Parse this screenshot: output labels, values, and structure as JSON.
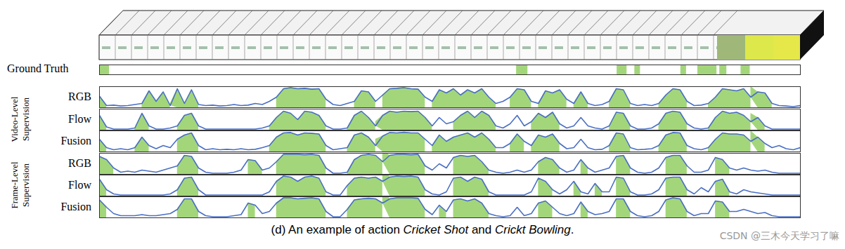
{
  "chart_data": {
    "type": "line",
    "tick_labels": false,
    "x": [
      0,
      1,
      2,
      3,
      4,
      5,
      6,
      7,
      8,
      9,
      10,
      11,
      12,
      13,
      14,
      15,
      16,
      17,
      18,
      19,
      20,
      21,
      22,
      23,
      24,
      25,
      26,
      27,
      28,
      29,
      30,
      31,
      32,
      33,
      34,
      35,
      36,
      37,
      38,
      39,
      40,
      41,
      42,
      43,
      44,
      45,
      46,
      47,
      48,
      49,
      50,
      51,
      52,
      53,
      54,
      55,
      56,
      57,
      58,
      59,
      60,
      61,
      62,
      63,
      64,
      65,
      66,
      67,
      68,
      69,
      70,
      71,
      72,
      73,
      74,
      75,
      76,
      77,
      78,
      79,
      80,
      81,
      82,
      83,
      84,
      85,
      86,
      87,
      88,
      89,
      90,
      91,
      92,
      93,
      94,
      95,
      96,
      97,
      98,
      99
    ],
    "xlim": [
      0,
      99
    ],
    "ylim": [
      0,
      1
    ],
    "ground_truth": {
      "label": "Ground Truth",
      "intervals": [
        [
          0,
          1.4
        ],
        [
          58.9,
          60.5
        ],
        [
          73.1,
          74.5
        ],
        [
          75.6,
          76.4
        ],
        [
          82.1,
          82.9
        ],
        [
          84.5,
          87.2
        ],
        [
          87.6,
          88.6
        ],
        [
          90.6,
          91.9
        ]
      ]
    },
    "series": [
      {
        "name": "RGB",
        "group": "Video-Level Supervision",
        "color": "#4a6fc4",
        "values": [
          0.55,
          0.1,
          0.12,
          0.08,
          0.1,
          0.15,
          0.2,
          0.8,
          0.3,
          0.75,
          0.1,
          0.9,
          0.2,
          0.85,
          0.15,
          0.1,
          0.12,
          0.08,
          0.1,
          0.15,
          0.1,
          0.12,
          0.2,
          0.15,
          0.3,
          0.5,
          0.9,
          0.95,
          0.9,
          0.92,
          0.88,
          0.9,
          0.4,
          0.15,
          0.1,
          0.2,
          0.3,
          0.8,
          0.75,
          0.3,
          0.6,
          0.9,
          0.92,
          0.95,
          0.9,
          0.88,
          0.5,
          0.3,
          0.85,
          0.7,
          0.9,
          0.6,
          0.85,
          0.7,
          0.9,
          0.5,
          0.2,
          0.3,
          0.5,
          0.9,
          0.85,
          0.3,
          0.2,
          0.8,
          0.7,
          0.85,
          0.4,
          0.2,
          0.75,
          0.2,
          0.1,
          0.15,
          0.3,
          0.9,
          0.85,
          0.2,
          0.1,
          0.15,
          0.1,
          0.2,
          0.6,
          0.9,
          0.85,
          0.3,
          0.1,
          0.12,
          0.2,
          0.5,
          0.9,
          0.85,
          0.8,
          0.9,
          0.5,
          0.75,
          0.7,
          0.2,
          0.1,
          0.08,
          0.05,
          0.1
        ],
        "detections": [
          [
            0,
            1
          ],
          [
            6,
            10
          ],
          [
            10,
            14
          ],
          [
            25,
            32
          ],
          [
            36,
            39
          ],
          [
            40,
            46
          ],
          [
            47,
            56
          ],
          [
            58,
            61
          ],
          [
            62,
            66
          ],
          [
            67,
            69
          ],
          [
            72,
            75
          ],
          [
            79,
            83
          ],
          [
            86,
            92
          ],
          [
            92,
            95
          ]
        ]
      },
      {
        "name": "Flow",
        "group": "Video-Level Supervision",
        "color": "#4a6fc4",
        "values": [
          0.7,
          0.15,
          0.05,
          0.05,
          0.05,
          0.1,
          0.8,
          0.2,
          0.05,
          0.05,
          0.1,
          0.2,
          0.7,
          0.8,
          0.2,
          0.05,
          0.05,
          0.05,
          0.05,
          0.05,
          0.05,
          0.05,
          0.05,
          0.1,
          0.2,
          0.6,
          0.9,
          0.8,
          0.5,
          0.9,
          0.85,
          0.7,
          0.2,
          0.05,
          0.05,
          0.1,
          0.7,
          0.9,
          0.6,
          0.2,
          0.7,
          0.9,
          0.85,
          0.9,
          0.88,
          0.9,
          0.6,
          0.2,
          0.6,
          0.3,
          0.4,
          0.7,
          0.9,
          0.6,
          0.9,
          0.7,
          0.2,
          0.1,
          0.3,
          0.7,
          0.2,
          0.4,
          0.8,
          0.6,
          0.85,
          0.3,
          0.1,
          0.2,
          0.6,
          0.2,
          0.1,
          0.05,
          0.2,
          0.85,
          0.8,
          0.2,
          0.05,
          0.05,
          0.1,
          0.3,
          0.8,
          0.9,
          0.85,
          0.3,
          0.1,
          0.05,
          0.1,
          0.6,
          0.9,
          0.8,
          0.85,
          0.7,
          0.4,
          0.6,
          0.2,
          0.05,
          0.05,
          0.05,
          0.05,
          0.05
        ],
        "detections": [
          [
            0,
            1
          ],
          [
            5,
            7
          ],
          [
            11,
            14
          ],
          [
            24,
            32
          ],
          [
            35,
            39
          ],
          [
            39,
            47
          ],
          [
            50,
            56
          ],
          [
            61,
            65
          ],
          [
            72,
            75
          ],
          [
            79,
            83
          ],
          [
            86,
            92
          ],
          [
            92,
            94
          ]
        ]
      },
      {
        "name": "Fusion",
        "group": "Video-Level Supervision",
        "color": "#4a6fc4",
        "values": [
          0.6,
          0.2,
          0.1,
          0.15,
          0.1,
          0.2,
          0.7,
          0.3,
          0.15,
          0.3,
          0.2,
          0.6,
          0.8,
          0.9,
          0.3,
          0.1,
          0.15,
          0.1,
          0.12,
          0.1,
          0.15,
          0.1,
          0.12,
          0.2,
          0.3,
          0.7,
          0.9,
          0.92,
          0.8,
          0.9,
          0.88,
          0.85,
          0.3,
          0.1,
          0.15,
          0.2,
          0.8,
          0.9,
          0.7,
          0.3,
          0.75,
          0.92,
          0.9,
          0.93,
          0.9,
          0.9,
          0.6,
          0.3,
          0.8,
          0.5,
          0.7,
          0.8,
          0.9,
          0.7,
          0.9,
          0.6,
          0.2,
          0.2,
          0.4,
          0.85,
          0.5,
          0.3,
          0.8,
          0.7,
          0.85,
          0.4,
          0.15,
          0.2,
          0.6,
          0.2,
          0.1,
          0.12,
          0.3,
          0.9,
          0.85,
          0.2,
          0.1,
          0.12,
          0.15,
          0.3,
          0.8,
          0.92,
          0.9,
          0.3,
          0.15,
          0.1,
          0.2,
          0.6,
          0.9,
          0.85,
          0.85,
          0.8,
          0.5,
          0.7,
          0.4,
          0.2,
          0.3,
          0.15,
          0.1,
          0.2
        ],
        "detections": [
          [
            0,
            1
          ],
          [
            5,
            7
          ],
          [
            11,
            14
          ],
          [
            24,
            32
          ],
          [
            35,
            39
          ],
          [
            39,
            46
          ],
          [
            47,
            56
          ],
          [
            58,
            60
          ],
          [
            61,
            65
          ],
          [
            72,
            75
          ],
          [
            79,
            83
          ],
          [
            86,
            92
          ],
          [
            92,
            94
          ]
        ]
      },
      {
        "name": "RGB",
        "group": "Frame-Level Supervision",
        "color": "#4a6fc4",
        "values": [
          0.85,
          0.7,
          0.3,
          0.1,
          0.15,
          0.1,
          0.2,
          0.15,
          0.1,
          0.2,
          0.3,
          0.4,
          0.9,
          0.85,
          0.3,
          0.1,
          0.05,
          0.05,
          0.05,
          0.1,
          0.2,
          0.7,
          0.65,
          0.2,
          0.3,
          0.6,
          0.95,
          0.95,
          0.95,
          0.93,
          0.95,
          0.9,
          0.3,
          0.05,
          0.05,
          0.1,
          0.7,
          0.9,
          0.95,
          0.9,
          0.6,
          0.9,
          0.95,
          0.95,
          0.93,
          0.95,
          0.4,
          0.2,
          0.5,
          0.3,
          0.8,
          0.9,
          0.85,
          0.9,
          0.6,
          0.2,
          0.1,
          0.05,
          0.1,
          0.2,
          0.1,
          0.2,
          0.6,
          0.8,
          0.7,
          0.3,
          0.1,
          0.2,
          0.7,
          0.3,
          0.1,
          0.2,
          0.3,
          0.85,
          0.9,
          0.3,
          0.1,
          0.05,
          0.1,
          0.3,
          0.8,
          0.9,
          0.9,
          0.4,
          0.1,
          0.1,
          0.2,
          0.8,
          0.7,
          0.3,
          0.2,
          0.3,
          0.2,
          0.15,
          0.2,
          0.1,
          0.05,
          0.05,
          0.05,
          0.05
        ],
        "detections": [
          [
            0,
            2
          ],
          [
            11,
            14
          ],
          [
            21,
            23
          ],
          [
            25,
            32
          ],
          [
            35,
            40
          ],
          [
            40,
            46
          ],
          [
            50,
            55
          ],
          [
            62,
            65
          ],
          [
            68,
            69
          ],
          [
            73,
            75
          ],
          [
            80,
            83
          ],
          [
            87,
            89
          ]
        ]
      },
      {
        "name": "Flow",
        "group": "Frame-Level Supervision",
        "color": "#4a6fc4",
        "values": [
          0.8,
          0.3,
          0.1,
          0.05,
          0.05,
          0.05,
          0.05,
          0.05,
          0.05,
          0.05,
          0.1,
          0.3,
          0.85,
          0.9,
          0.3,
          0.05,
          0.05,
          0.05,
          0.05,
          0.05,
          0.05,
          0.05,
          0.05,
          0.05,
          0.2,
          0.7,
          0.95,
          0.9,
          0.7,
          0.9,
          0.95,
          0.85,
          0.2,
          0.05,
          0.05,
          0.5,
          0.85,
          0.9,
          0.85,
          0.9,
          0.7,
          0.9,
          0.95,
          0.93,
          0.95,
          0.9,
          0.3,
          0.1,
          0.05,
          0.2,
          0.85,
          0.9,
          0.7,
          0.9,
          0.8,
          0.2,
          0.05,
          0.05,
          0.05,
          0.05,
          0.05,
          0.2,
          0.85,
          0.7,
          0.3,
          0.1,
          0.3,
          0.7,
          0.2,
          0.1,
          0.6,
          0.2,
          0.2,
          0.9,
          0.85,
          0.2,
          0.05,
          0.05,
          0.1,
          0.3,
          0.85,
          0.9,
          0.9,
          0.3,
          0.1,
          0.4,
          0.2,
          0.7,
          0.8,
          0.2,
          0.1,
          0.3,
          0.2,
          0.15,
          0.1,
          0.05,
          0.05,
          0.05,
          0.05,
          0.05
        ],
        "detections": [
          [
            0,
            1
          ],
          [
            11,
            14
          ],
          [
            25,
            32
          ],
          [
            35,
            40
          ],
          [
            40,
            46
          ],
          [
            50,
            55
          ],
          [
            62,
            64
          ],
          [
            67,
            68
          ],
          [
            70,
            71
          ],
          [
            73,
            75
          ],
          [
            80,
            83
          ],
          [
            87,
            89
          ]
        ]
      },
      {
        "name": "Fusion",
        "group": "Frame-Level Supervision",
        "color": "#4a6fc4",
        "values": [
          0.85,
          0.5,
          0.2,
          0.1,
          0.1,
          0.1,
          0.15,
          0.1,
          0.1,
          0.15,
          0.2,
          0.4,
          0.9,
          0.9,
          0.3,
          0.1,
          0.05,
          0.05,
          0.05,
          0.1,
          0.15,
          0.7,
          0.6,
          0.2,
          0.3,
          0.7,
          0.95,
          0.95,
          0.9,
          0.93,
          0.95,
          0.9,
          0.3,
          0.05,
          0.05,
          0.4,
          0.85,
          0.9,
          0.93,
          0.9,
          0.7,
          0.9,
          0.95,
          0.95,
          0.95,
          0.93,
          0.4,
          0.15,
          0.6,
          0.3,
          0.85,
          0.9,
          0.8,
          0.9,
          0.7,
          0.2,
          0.1,
          0.05,
          0.1,
          0.5,
          0.1,
          0.2,
          0.7,
          0.8,
          0.5,
          0.2,
          0.1,
          0.2,
          0.75,
          0.3,
          0.15,
          0.2,
          0.3,
          0.9,
          0.9,
          0.3,
          0.1,
          0.05,
          0.1,
          0.3,
          0.85,
          0.95,
          0.9,
          0.3,
          0.1,
          0.2,
          0.2,
          0.8,
          0.75,
          0.3,
          0.3,
          0.4,
          0.3,
          0.2,
          0.25,
          0.1,
          0.05,
          0.05,
          0.05,
          0.05
        ],
        "detections": [
          [
            0,
            1
          ],
          [
            11,
            14
          ],
          [
            21,
            22
          ],
          [
            25,
            32
          ],
          [
            35,
            40
          ],
          [
            40,
            46
          ],
          [
            48,
            49
          ],
          [
            50,
            55
          ],
          [
            62,
            64
          ],
          [
            68,
            69
          ],
          [
            73,
            75
          ],
          [
            80,
            83
          ],
          [
            87,
            89
          ]
        ]
      }
    ],
    "caption": "(d) An example of action Cricket Shot and Crickt Bowling.",
    "caption_italic": [
      "Cricket Shot",
      "Crickt Bowling"
    ],
    "watermark": "CSDN @三木今天学习了嘛"
  }
}
